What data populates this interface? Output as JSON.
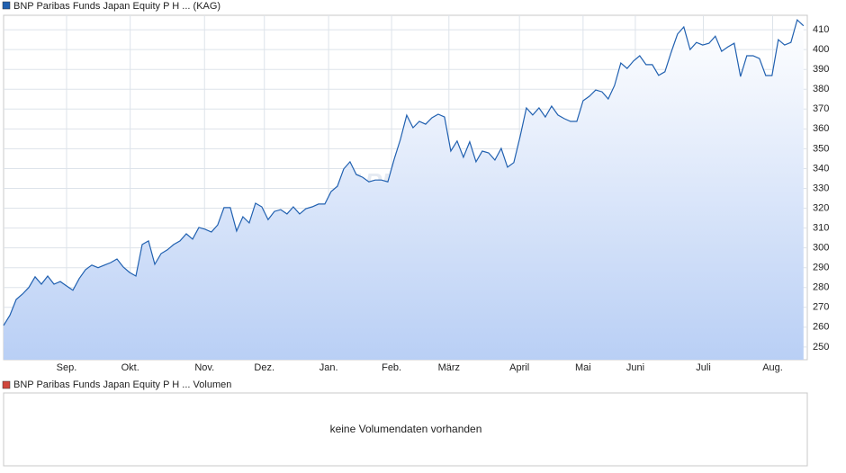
{
  "chart_data": [
    {
      "type": "line",
      "series": [
        {
          "name": "BNP Paribas Funds Japan Equity P H ... (KAG)",
          "color": "#2060b0",
          "values": [
            260.9,
            266,
            274,
            276.7,
            280,
            285.4,
            281.7,
            285.8,
            281.7,
            283,
            280.8,
            278.6,
            284.5,
            289,
            291.3,
            290,
            291.3,
            292.6,
            294.4,
            290.3,
            287.6,
            285.8,
            301.7,
            303.5,
            291.7,
            297.1,
            299,
            301.7,
            303.5,
            307.1,
            304.4,
            310.3,
            309.4,
            308,
            311.6,
            320.3,
            320.3,
            308.5,
            315.7,
            312.6,
            322.5,
            320.7,
            314.2,
            318.4,
            319.3,
            317.1,
            320.7,
            317.1,
            319.8,
            320.7,
            322.1,
            322.1,
            328.4,
            331.1,
            339.8,
            343.4,
            337,
            335.6,
            333.3,
            334.2,
            334.2,
            333.3,
            344.6,
            354.7,
            366.9,
            360.6,
            363.8,
            362.4,
            365.6,
            367.4,
            366,
            348.8,
            353.9,
            345.7,
            353.5,
            343.4,
            348.8,
            347.9,
            344.3,
            350.2,
            340.7,
            343,
            356.1,
            370.6,
            367,
            370.6,
            366,
            371.5,
            367,
            365.2,
            363.8,
            363.8,
            374.2,
            376.5,
            379.6,
            378.7,
            375.1,
            381.9,
            393.2,
            390.5,
            394.2,
            396.9,
            392.4,
            392.4,
            387,
            388.8,
            398.7,
            407.8,
            411.4,
            400,
            403.6,
            402.3,
            403.2,
            406.8,
            399.1,
            401.4,
            403.2,
            386.4,
            396.9,
            396.9,
            395.5,
            386.9,
            386.9,
            405,
            402.3,
            403.6,
            415,
            412
          ]
        }
      ],
      "x": [
        0,
        1,
        2,
        3,
        4,
        5,
        6,
        7,
        8,
        9,
        10,
        11,
        12,
        13,
        14,
        15,
        16,
        17,
        18,
        19,
        20,
        21,
        22,
        23,
        24,
        25,
        26,
        27,
        28,
        29,
        30,
        31,
        32,
        33,
        34,
        35,
        36,
        37,
        38,
        39,
        40,
        41,
        42,
        43,
        44,
        45,
        46,
        47,
        48,
        49,
        50,
        51,
        52,
        53,
        54,
        55,
        56,
        57,
        58,
        59,
        60,
        61,
        62,
        63,
        64,
        65,
        66,
        67,
        68,
        69,
        70,
        71,
        72,
        73,
        74,
        75,
        76,
        77,
        78,
        79,
        80,
        81,
        82,
        83,
        84,
        85,
        86,
        87,
        88,
        89,
        90,
        91,
        92,
        93,
        94,
        95,
        96,
        97,
        98,
        99,
        100,
        101,
        102,
        103,
        104,
        105,
        106,
        107,
        108,
        109,
        110,
        111,
        112,
        113,
        114,
        115,
        116,
        117,
        118,
        119,
        120,
        121,
        122,
        123,
        124,
        125,
        126,
        127
      ],
      "xlim": [
        0,
        127.6
      ],
      "xticks": [
        {
          "value": 10,
          "label": "Sep."
        },
        {
          "value": 20.1,
          "label": "Okt."
        },
        {
          "value": 31.9,
          "label": "Nov."
        },
        {
          "value": 41.4,
          "label": "Dez."
        },
        {
          "value": 51.6,
          "label": "Jan."
        },
        {
          "value": 61.6,
          "label": "Feb."
        },
        {
          "value": 70.7,
          "label": "März"
        },
        {
          "value": 81.9,
          "label": "April"
        },
        {
          "value": 92,
          "label": "Mai"
        },
        {
          "value": 100.3,
          "label": "Juni"
        },
        {
          "value": 111.1,
          "label": "Juli"
        },
        {
          "value": 122.1,
          "label": "Aug."
        }
      ],
      "ylim": [
        243.6,
        417.3
      ],
      "yticks": [
        250,
        260,
        270,
        280,
        290,
        300,
        310,
        320,
        330,
        340,
        350,
        360,
        370,
        380,
        390,
        400,
        410
      ],
      "grid": true,
      "watermark": "ARIVA.DE"
    },
    {
      "type": "bar",
      "series": [
        {
          "name": "BNP Paribas Funds Japan Equity P H ... Volumen",
          "color": "#d0463c",
          "values": []
        }
      ],
      "message": "keine Volumendaten vorhanden"
    }
  ]
}
